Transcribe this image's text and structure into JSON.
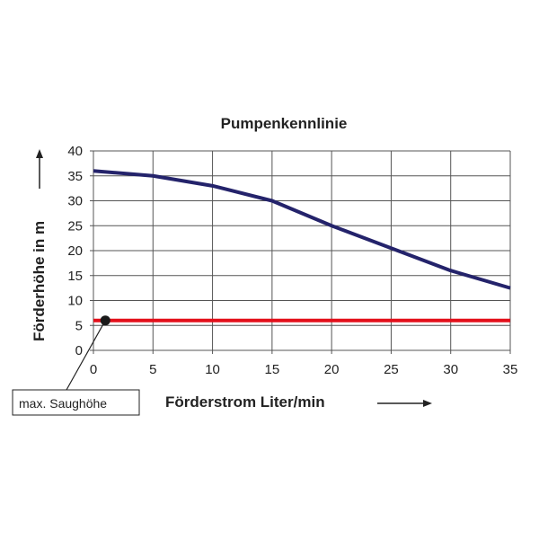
{
  "chart_data": {
    "type": "line",
    "title": "Pumpenkennlinie",
    "xlabel": "Förderstrom Liter/min",
    "ylabel": "Förderhöhe in m",
    "xlim": [
      0,
      35
    ],
    "ylim": [
      0,
      40
    ],
    "xticks": [
      0,
      5,
      10,
      15,
      20,
      25,
      30,
      35
    ],
    "yticks": [
      0,
      5,
      10,
      15,
      20,
      25,
      30,
      35,
      40
    ],
    "grid": true,
    "series": [
      {
        "name": "Pumpenkennlinie",
        "color": "#24236b",
        "x": [
          0,
          5,
          10,
          15,
          20,
          25,
          30,
          35
        ],
        "y": [
          36,
          35,
          33,
          30,
          25,
          20.5,
          16,
          12.5
        ]
      },
      {
        "name": "max. Saughöhe",
        "color": "#e3101b",
        "x": [
          0,
          35
        ],
        "y": [
          6,
          6
        ]
      }
    ],
    "annotations": [
      {
        "text": "max. Saughöhe",
        "point": [
          1,
          6
        ]
      }
    ]
  }
}
